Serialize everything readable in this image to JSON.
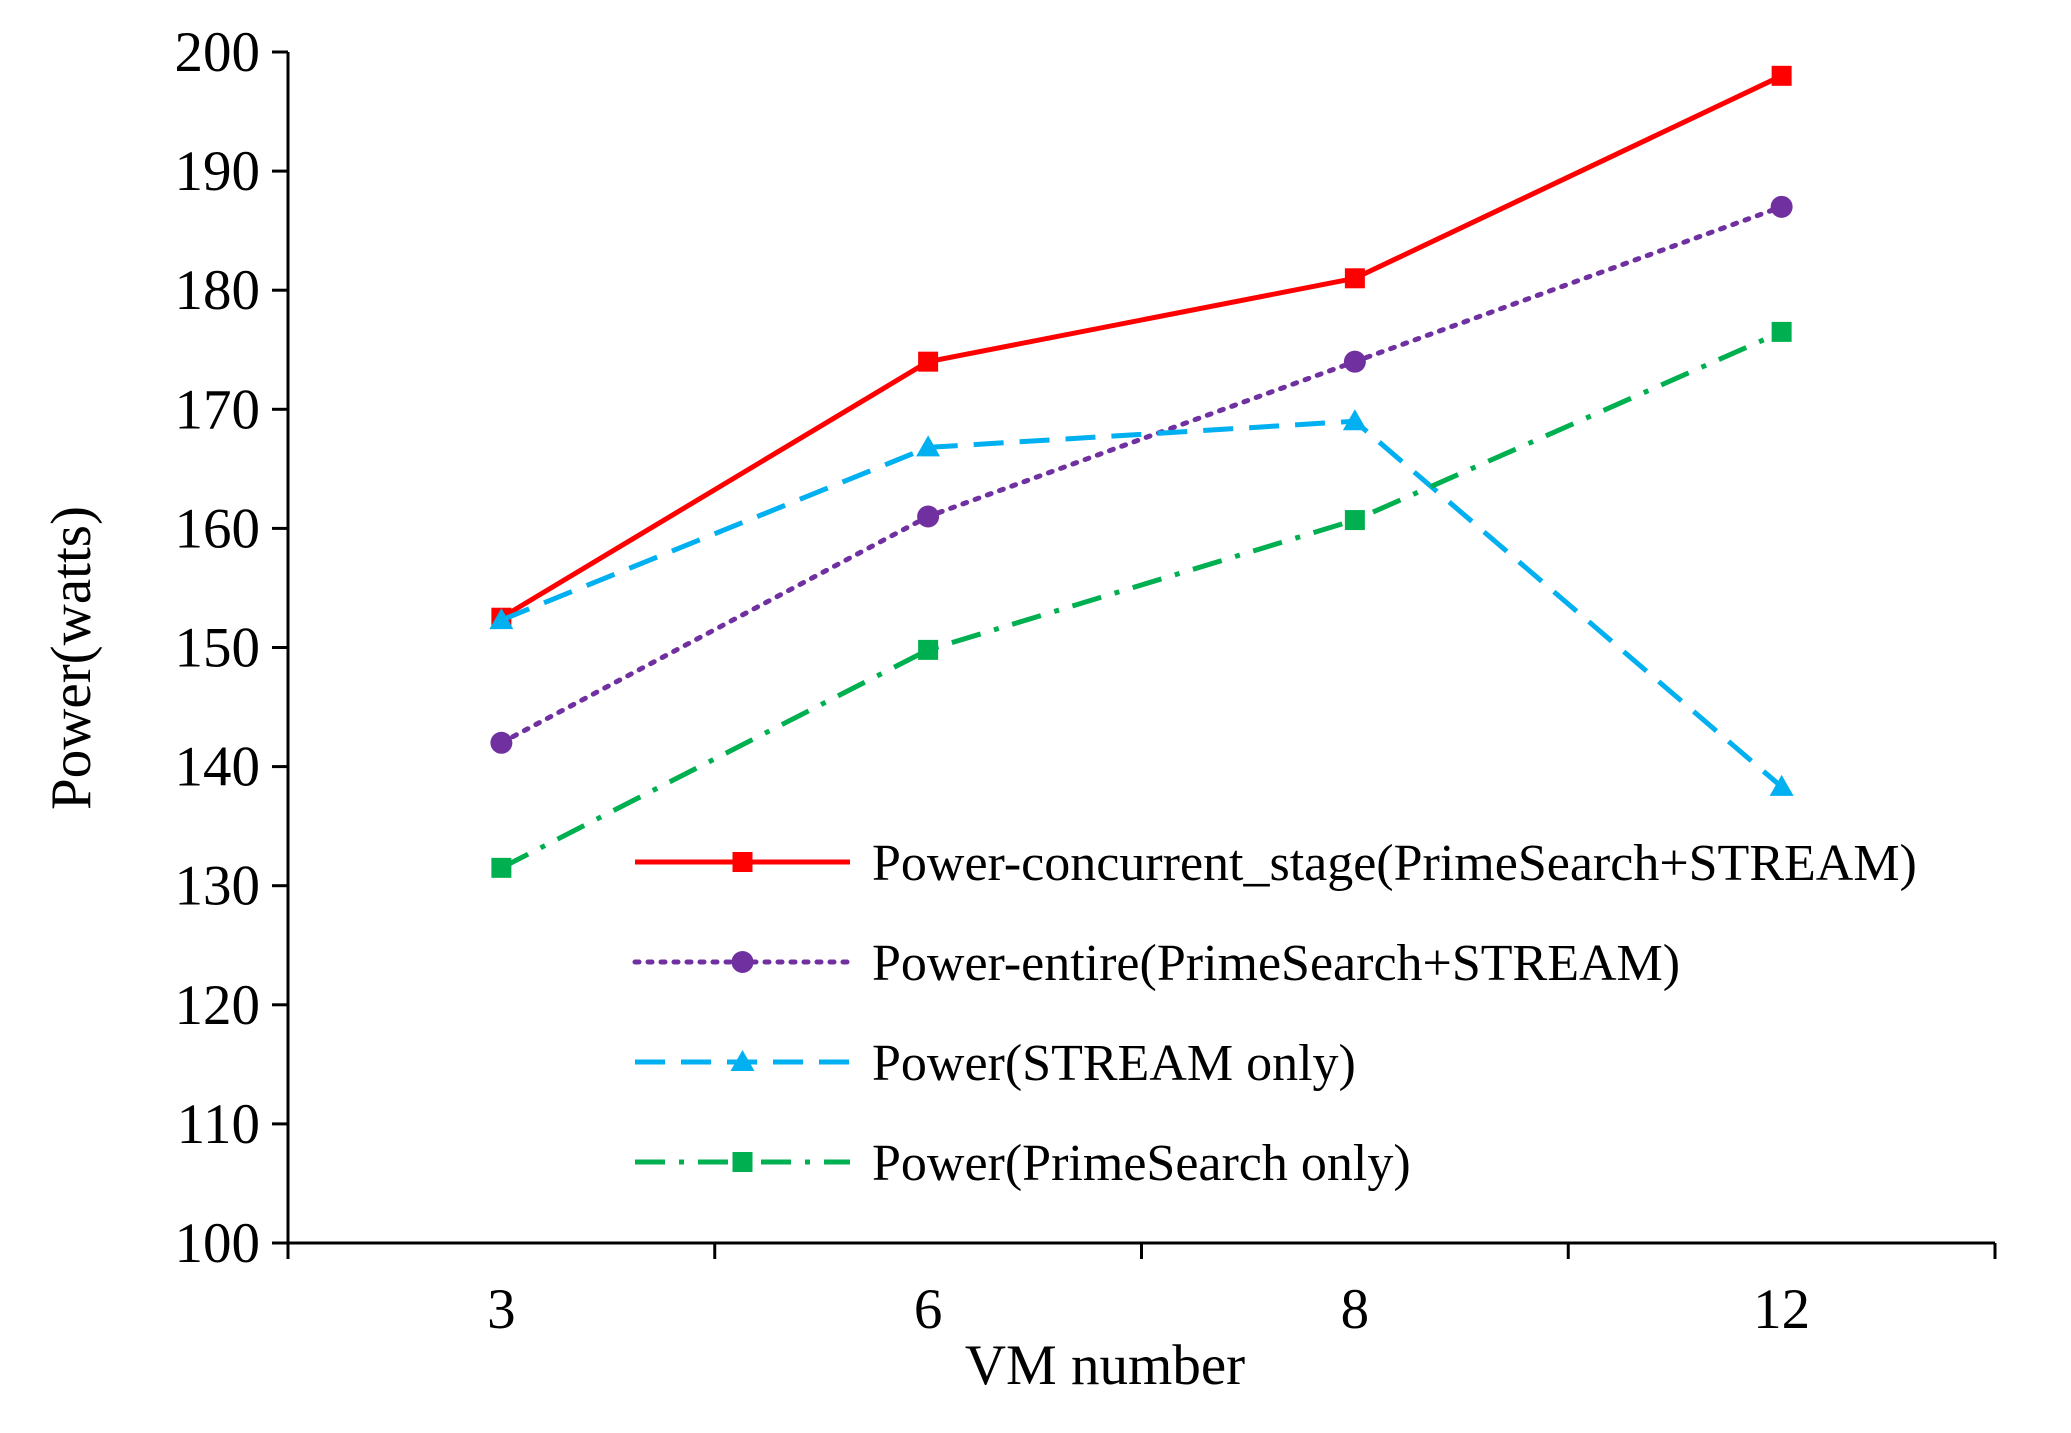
{
  "chart_data": {
    "type": "line",
    "title": "",
    "xlabel": "VM number",
    "ylabel": "Power(watts)",
    "categories": [
      "3",
      "6",
      "8",
      "12"
    ],
    "ylim": [
      100,
      200
    ],
    "yticks": [
      100,
      110,
      120,
      130,
      140,
      150,
      160,
      170,
      180,
      190,
      200
    ],
    "grid": false,
    "legend_position": "bottom-right",
    "series": [
      {
        "name": "Power-concurrent_stage(PrimeSearch+STREAM)",
        "values": [
          152.5,
          174,
          181,
          198
        ],
        "color": "#ff0000",
        "line_style": "solid",
        "marker": "square"
      },
      {
        "name": "Power-entire(PrimeSearch+STREAM)",
        "values": [
          142,
          161,
          174,
          187
        ],
        "color": "#7030a0",
        "line_style": "dotted",
        "marker": "circle"
      },
      {
        "name": "Power(STREAM only)",
        "values": [
          152.3,
          166.8,
          169,
          138.3
        ],
        "color": "#00b0f0",
        "line_style": "dashed",
        "marker": "triangle"
      },
      {
        "name": "Power(PrimeSearch only)",
        "values": [
          131.5,
          149.8,
          160.7,
          176.5
        ],
        "color": "#00b050",
        "line_style": "dashdot",
        "marker": "square"
      }
    ]
  }
}
